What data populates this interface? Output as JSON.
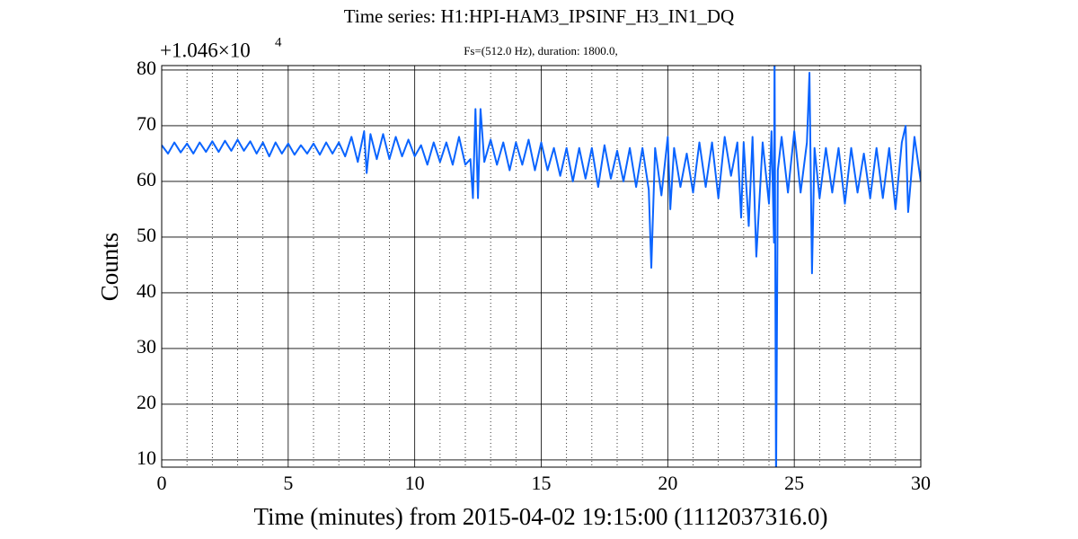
{
  "chart_data": {
    "type": "line",
    "title": "Time series: H1:HPI-HAM3_IPSINF_H3_IN1_DQ",
    "subtitle": "Fs=(512.0 Hz), duration: 1800.0,",
    "offset_text": "+1.046×10",
    "offset_exponent": "4",
    "xlabel": "Time (minutes) from 2015-04-02 19:15:00 (1112037316.0)",
    "ylabel": "Counts",
    "xlim": [
      0,
      30
    ],
    "xticks": [
      0,
      5,
      10,
      15,
      20,
      25,
      30
    ],
    "xminorticks": [
      1,
      2,
      3,
      4,
      6,
      7,
      8,
      9,
      11,
      12,
      13,
      14,
      16,
      17,
      18,
      19,
      21,
      22,
      23,
      24,
      26,
      27,
      28,
      29
    ],
    "ylim": [
      8.7,
      80.8
    ],
    "yticks": [
      10,
      20,
      30,
      40,
      50,
      60,
      70,
      80
    ],
    "grid": true,
    "series": [
      {
        "color": "#0a64ff",
        "x": [
          0,
          0.25,
          0.5,
          0.75,
          1,
          1.25,
          1.5,
          1.75,
          2,
          2.25,
          2.5,
          2.75,
          3,
          3.25,
          3.5,
          3.75,
          4,
          4.25,
          4.5,
          4.75,
          5,
          5.25,
          5.5,
          5.75,
          6,
          6.25,
          6.5,
          6.75,
          7,
          7.25,
          7.5,
          7.75,
          8,
          8.1,
          8.25,
          8.5,
          8.75,
          9,
          9.25,
          9.5,
          9.75,
          10,
          10.25,
          10.5,
          10.75,
          11,
          11.25,
          11.5,
          11.75,
          12,
          12.2,
          12.3,
          12.4,
          12.5,
          12.6,
          12.75,
          13,
          13.25,
          13.5,
          13.75,
          14,
          14.25,
          14.5,
          14.75,
          15,
          15.25,
          15.5,
          15.75,
          16,
          16.25,
          16.5,
          16.75,
          17,
          17.25,
          17.5,
          17.75,
          18,
          18.25,
          18.5,
          18.75,
          19,
          19.25,
          19.35,
          19.5,
          19.75,
          20,
          20.1,
          20.25,
          20.5,
          20.75,
          21,
          21.25,
          21.5,
          21.75,
          22,
          22.25,
          22.5,
          22.75,
          22.9,
          23,
          23.2,
          23.35,
          23.5,
          23.75,
          24,
          24.1,
          24.2,
          24.22,
          24.28,
          24.35,
          24.5,
          24.75,
          25,
          25.25,
          25.5,
          25.6,
          25.7,
          25.8,
          26,
          26.25,
          26.5,
          26.75,
          27,
          27.25,
          27.5,
          27.75,
          28,
          28.25,
          28.5,
          28.75,
          29,
          29.25,
          29.4,
          29.5,
          29.75,
          30
        ],
        "values": [
          66.5,
          65,
          67,
          65.2,
          66.8,
          65,
          67,
          65.3,
          67.2,
          65.3,
          67.3,
          65.5,
          67.5,
          65.5,
          67.2,
          65,
          67,
          64.5,
          67,
          65,
          66.8,
          64.8,
          66.5,
          65,
          66.8,
          64.8,
          67,
          65,
          67,
          64.5,
          68,
          63.5,
          69,
          61.5,
          68.5,
          64,
          68.5,
          64,
          68,
          64.5,
          67.5,
          64.5,
          66.5,
          63,
          67,
          63.5,
          67,
          63,
          68,
          63,
          64,
          57,
          73,
          57,
          73,
          63.5,
          67.5,
          63,
          67,
          62,
          67,
          63,
          67.5,
          62,
          67,
          62,
          66,
          61,
          66,
          60,
          66,
          60.5,
          66,
          59,
          66.5,
          60.5,
          65.5,
          60,
          66,
          59,
          66,
          58.5,
          44.5,
          66,
          57.5,
          68,
          55,
          66,
          59,
          65,
          58,
          67,
          59,
          67,
          57,
          68,
          61,
          67,
          53.5,
          67,
          52,
          68,
          46.5,
          67,
          56,
          69,
          49,
          85,
          5,
          62,
          68,
          58,
          69,
          58,
          67,
          79.5,
          43.5,
          66,
          57,
          66,
          58,
          66,
          56,
          66,
          58,
          65,
          57,
          66,
          57,
          66,
          55,
          67,
          70,
          54.5,
          68,
          60
        ]
      }
    ]
  }
}
